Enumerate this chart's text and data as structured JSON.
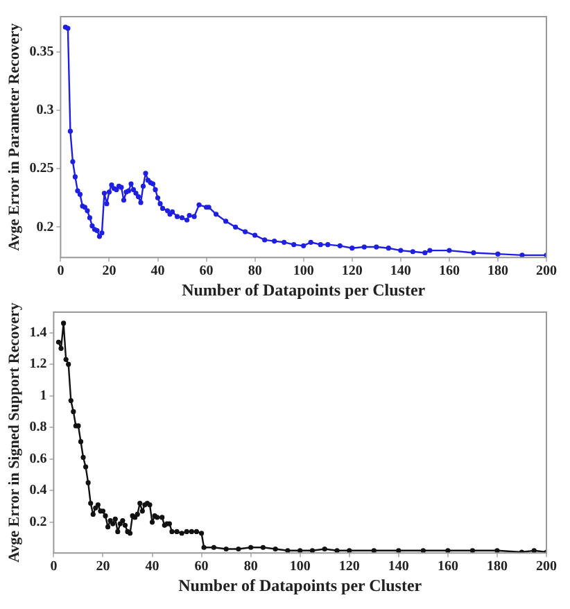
{
  "chart_data": [
    {
      "type": "line",
      "xlabel": "Number of Datapoints per Cluster",
      "ylabel": "Avge Error in Parameter Recovery",
      "marker": "circle",
      "line_style": "solid",
      "grid": false,
      "legend": false,
      "xlim": [
        0,
        200
      ],
      "xticks": [
        0,
        20,
        40,
        60,
        80,
        100,
        120,
        140,
        160,
        180,
        200
      ],
      "ylim": [
        0.174,
        0.38
      ],
      "yticks": [
        0.2,
        0.25,
        0.3,
        0.35
      ],
      "x": [
        2,
        3,
        4,
        5,
        6,
        7,
        8,
        9,
        10,
        11,
        12,
        13,
        14,
        15,
        16,
        17,
        18,
        19,
        20,
        21,
        22,
        23,
        24,
        25,
        26,
        27,
        28,
        29,
        30,
        31,
        32,
        33,
        34,
        35,
        36,
        37,
        38,
        39,
        40,
        41,
        42,
        44,
        45,
        46,
        48,
        50,
        52,
        53,
        55,
        57,
        60,
        61,
        64,
        68,
        72,
        76,
        80,
        84,
        88,
        92,
        96,
        100,
        103,
        107,
        110,
        115,
        120,
        125,
        130,
        135,
        140,
        145,
        150,
        152,
        160,
        170,
        180,
        190,
        200
      ],
      "series": [
        {
          "color": "#1f1fe0",
          "values": [
            0.371,
            0.37,
            0.282,
            0.256,
            0.243,
            0.231,
            0.228,
            0.218,
            0.217,
            0.214,
            0.208,
            0.201,
            0.198,
            0.197,
            0.192,
            0.195,
            0.229,
            0.22,
            0.23,
            0.236,
            0.233,
            0.232,
            0.235,
            0.234,
            0.223,
            0.23,
            0.231,
            0.237,
            0.232,
            0.229,
            0.226,
            0.221,
            0.235,
            0.246,
            0.24,
            0.238,
            0.237,
            0.232,
            0.225,
            0.22,
            0.216,
            0.214,
            0.211,
            0.213,
            0.209,
            0.208,
            0.206,
            0.21,
            0.209,
            0.219,
            0.217,
            0.217,
            0.211,
            0.205,
            0.2,
            0.196,
            0.193,
            0.189,
            0.188,
            0.187,
            0.185,
            0.184,
            0.187,
            0.185,
            0.185,
            0.184,
            0.182,
            0.183,
            0.183,
            0.182,
            0.18,
            0.179,
            0.178,
            0.18,
            0.18,
            0.178,
            0.177,
            0.176,
            0.176
          ]
        }
      ]
    },
    {
      "type": "line",
      "xlabel": "Number of Datapoints per Cluster",
      "ylabel": "Avge Error in Signed Support Recovery",
      "marker": "circle",
      "line_style": "solid",
      "grid": false,
      "legend": false,
      "xlim": [
        0,
        200
      ],
      "xticks": [
        0,
        20,
        40,
        60,
        80,
        100,
        120,
        140,
        160,
        180,
        200
      ],
      "ylim": [
        0.005,
        1.53
      ],
      "yticks": [
        0.2,
        0.4,
        0.6,
        0.8,
        1,
        1.2,
        1.4
      ],
      "x": [
        2,
        3,
        4,
        5,
        6,
        7,
        8,
        9,
        10,
        11,
        12,
        13,
        14,
        15,
        16,
        17,
        18,
        19,
        20,
        21,
        22,
        23,
        24,
        25,
        26,
        27,
        28,
        29,
        30,
        31,
        32,
        33,
        34,
        35,
        36,
        37,
        38,
        39,
        40,
        41,
        42,
        44,
        45,
        46,
        47,
        48,
        50,
        52,
        54,
        56,
        58,
        60,
        61,
        65,
        70,
        75,
        80,
        85,
        90,
        95,
        100,
        105,
        110,
        115,
        120,
        130,
        140,
        150,
        160,
        170,
        180,
        190,
        195,
        200
      ],
      "series": [
        {
          "color": "#111111",
          "values": [
            1.34,
            1.3,
            1.46,
            1.23,
            1.2,
            0.97,
            0.9,
            0.81,
            0.81,
            0.71,
            0.61,
            0.55,
            0.45,
            0.32,
            0.25,
            0.29,
            0.31,
            0.27,
            0.27,
            0.24,
            0.17,
            0.21,
            0.19,
            0.22,
            0.14,
            0.19,
            0.21,
            0.18,
            0.14,
            0.13,
            0.24,
            0.23,
            0.25,
            0.32,
            0.27,
            0.31,
            0.32,
            0.31,
            0.2,
            0.24,
            0.23,
            0.23,
            0.18,
            0.19,
            0.19,
            0.14,
            0.14,
            0.13,
            0.14,
            0.14,
            0.14,
            0.13,
            0.04,
            0.04,
            0.03,
            0.03,
            0.04,
            0.04,
            0.03,
            0.02,
            0.02,
            0.02,
            0.03,
            0.02,
            0.02,
            0.02,
            0.02,
            0.02,
            0.02,
            0.02,
            0.02,
            0.01,
            0.02,
            0.01
          ]
        }
      ]
    }
  ]
}
